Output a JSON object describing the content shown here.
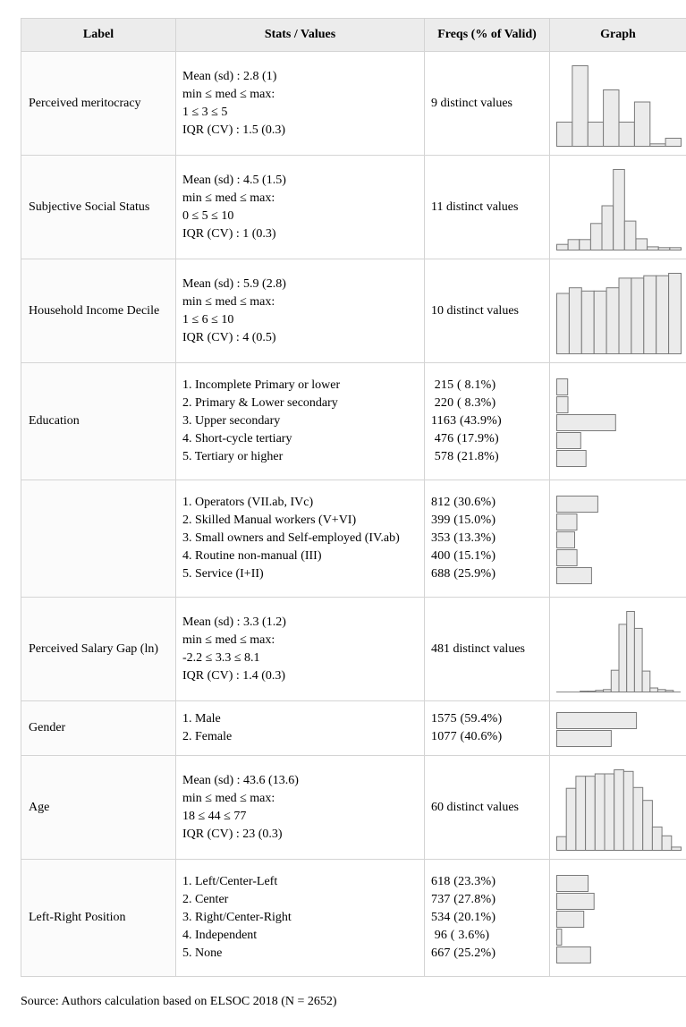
{
  "table": {
    "headers": {
      "label": "Label",
      "stats": "Stats / Values",
      "freqs": "Freqs (% of Valid)",
      "graph": "Graph"
    },
    "rows": [
      {
        "kind": "num",
        "label": "Perceived meritocracy",
        "stats": [
          "Mean (sd) : 2.8 (1)",
          "min ≤ med ≤ max:",
          "1 ≤ 3 ≤ 5",
          "IQR (CV) : 1.5 (0.3)"
        ],
        "freqs": "9 distinct values",
        "hist": [
          0.3,
          1.0,
          0.3,
          0.7,
          0.3,
          0.55,
          0.03,
          0.1
        ]
      },
      {
        "kind": "num",
        "label": "Subjective Social Status",
        "stats": [
          "Mean (sd) : 4.5 (1.5)",
          "min ≤ med ≤ max:",
          "0 ≤ 5 ≤ 10",
          "IQR (CV) : 1 (0.3)"
        ],
        "freqs": "11 distinct values",
        "hist": [
          0.07,
          0.13,
          0.13,
          0.33,
          0.55,
          1.0,
          0.36,
          0.14,
          0.04,
          0.03,
          0.03
        ]
      },
      {
        "kind": "num",
        "label": "Household Income Decile",
        "stats": [
          "Mean (sd) : 5.9 (2.8)",
          "min ≤ med ≤ max:",
          "1 ≤ 6 ≤ 10",
          "IQR (CV) : 4 (0.5)"
        ],
        "freqs": "10 distinct values",
        "hist": [
          0.75,
          0.82,
          0.78,
          0.78,
          0.82,
          0.94,
          0.94,
          0.97,
          0.97,
          1.0
        ]
      },
      {
        "kind": "cat",
        "label": "Education",
        "levels": [
          "1. Incomplete Primary or lower",
          "2. Primary & Lower secondary",
          "3. Upper secondary",
          "4. Short-cycle tertiary",
          "5. Tertiary or higher"
        ],
        "freqs": [
          " 215 ( 8.1%)",
          " 220 ( 8.3%)",
          "1163 (43.9%)",
          " 476 (17.9%)",
          " 578 (21.8%)"
        ],
        "pct": [
          8.1,
          8.3,
          43.9,
          17.9,
          21.8
        ]
      },
      {
        "kind": "cat",
        "label": "",
        "levels": [
          "1. Operators (VII.ab, IVc)",
          "2. Skilled Manual workers (V+VI)",
          "3. Small owners and Self-employed (IV.ab)",
          "4. Routine non-manual (III)",
          "5. Service (I+II)"
        ],
        "freqs": [
          "812 (30.6%)",
          "399 (15.0%)",
          "353 (13.3%)",
          "400 (15.1%)",
          "688 (25.9%)"
        ],
        "pct": [
          30.6,
          15.0,
          13.3,
          15.1,
          25.9
        ]
      },
      {
        "kind": "num",
        "label": "Perceived Salary Gap (ln)",
        "stats": [
          "Mean (sd) : 3.3 (1.2)",
          "min ≤ med ≤ max:",
          "-2.2 ≤ 3.3 ≤ 8.1",
          "IQR (CV) : 1.4 (0.3)"
        ],
        "freqs": "481 distinct values",
        "hist": [
          0.0,
          0.0,
          0.0,
          0.01,
          0.01,
          0.02,
          0.03,
          0.27,
          0.84,
          1.0,
          0.79,
          0.26,
          0.05,
          0.03,
          0.02,
          0.0
        ]
      },
      {
        "kind": "cat",
        "label": "Gender",
        "levels": [
          "1. Male",
          "2. Female"
        ],
        "freqs": [
          "1575 (59.4%)",
          "1077 (40.6%)"
        ],
        "pct": [
          59.4,
          40.6
        ]
      },
      {
        "kind": "num",
        "label": "Age",
        "stats": [
          "Mean (sd) : 43.6 (13.6)",
          "min ≤ med ≤ max:",
          "18 ≤ 44 ≤ 77",
          "IQR (CV) : 23 (0.3)"
        ],
        "freqs": "60 distinct values",
        "hist": [
          0.17,
          0.77,
          0.92,
          0.92,
          0.95,
          0.95,
          1.0,
          0.98,
          0.78,
          0.62,
          0.29,
          0.18,
          0.04
        ]
      },
      {
        "kind": "cat",
        "label": "Left-Right Position",
        "levels": [
          "1. Left/Center-Left",
          "2. Center",
          "3. Right/Center-Right",
          "4. Independent",
          "5. None"
        ],
        "freqs": [
          "618 (23.3%)",
          "737 (27.8%)",
          "534 (20.1%)",
          " 96 ( 3.6%)",
          "667 (25.2%)"
        ],
        "pct": [
          23.3,
          27.8,
          20.1,
          3.6,
          25.2
        ]
      }
    ]
  },
  "source_note": "Source: Authors calculation based on ELSOC 2018 (N = 2652)"
}
